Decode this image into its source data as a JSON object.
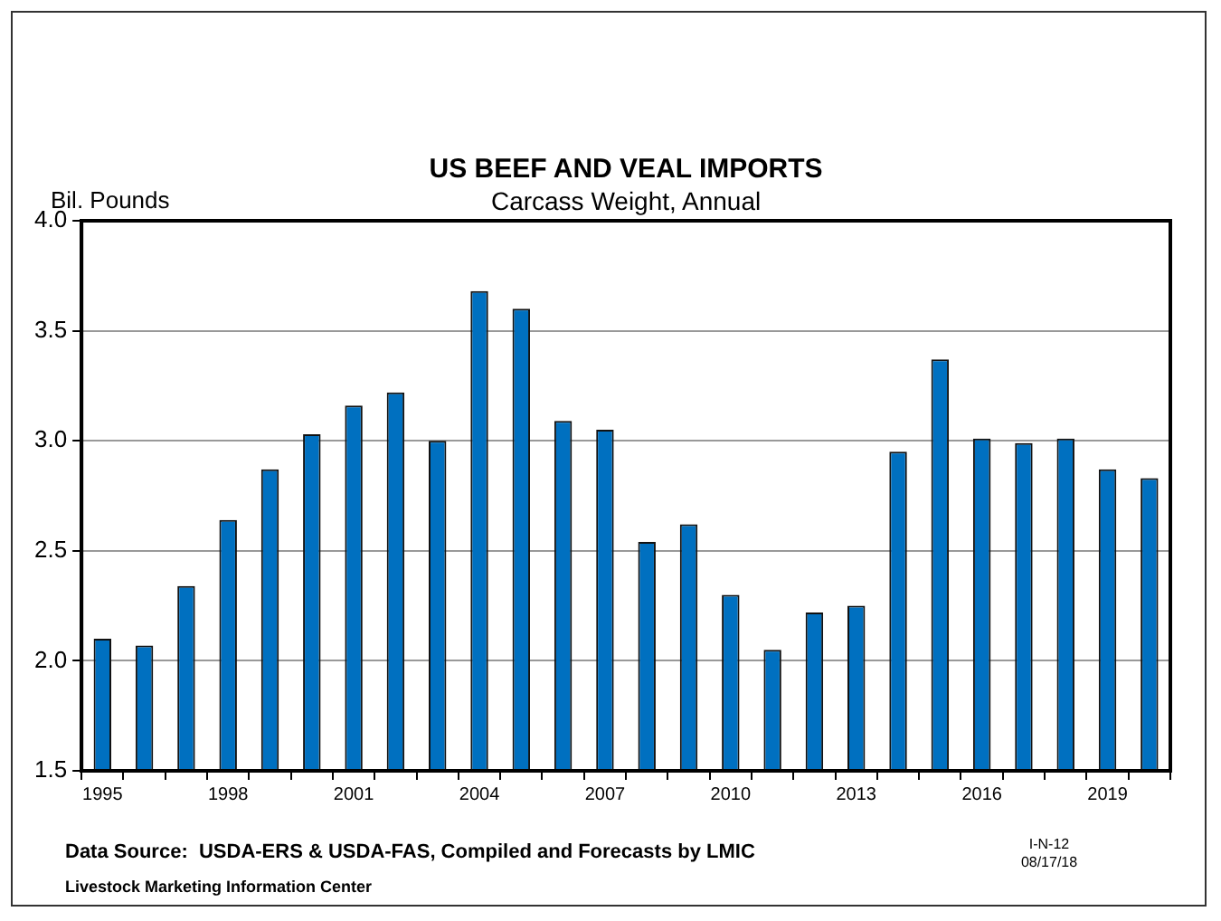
{
  "chart_data": {
    "type": "bar",
    "title": "US BEEF AND VEAL IMPORTS",
    "subtitle": "Carcass Weight, Annual",
    "ylabel": "Bil. Pounds",
    "categories": [
      "1995",
      null,
      null,
      "1998",
      null,
      null,
      "2001",
      null,
      null,
      "2004",
      null,
      null,
      "2007",
      null,
      null,
      "2010",
      null,
      null,
      "2013",
      null,
      null,
      "2016",
      null,
      null,
      "2019",
      null
    ],
    "values": [
      2.1,
      2.07,
      2.34,
      2.64,
      2.87,
      3.03,
      3.16,
      3.22,
      3.0,
      3.68,
      3.6,
      3.09,
      3.05,
      2.54,
      2.62,
      2.3,
      2.05,
      2.22,
      2.25,
      2.95,
      3.37,
      3.01,
      2.99,
      3.01,
      2.87,
      2.83
    ],
    "color": "#0070c0",
    "ylim": [
      1.5,
      4.0
    ],
    "yticks": [
      {
        "value": 1.5,
        "label": "1.5"
      },
      {
        "value": 2.0,
        "label": "2.0"
      },
      {
        "value": 2.5,
        "label": "2.5"
      },
      {
        "value": 3.0,
        "label": "3.0"
      },
      {
        "value": 3.5,
        "label": "3.5"
      },
      {
        "value": 4.0,
        "label": "4.0"
      }
    ],
    "grid": "y",
    "legend": false,
    "annotations": [
      "Data Source:  USDA-ERS & USDA-FAS, Compiled and Forecasts by LMIC",
      "Livestock Marketing Information Center",
      "I-N-12",
      "08/17/18"
    ]
  }
}
